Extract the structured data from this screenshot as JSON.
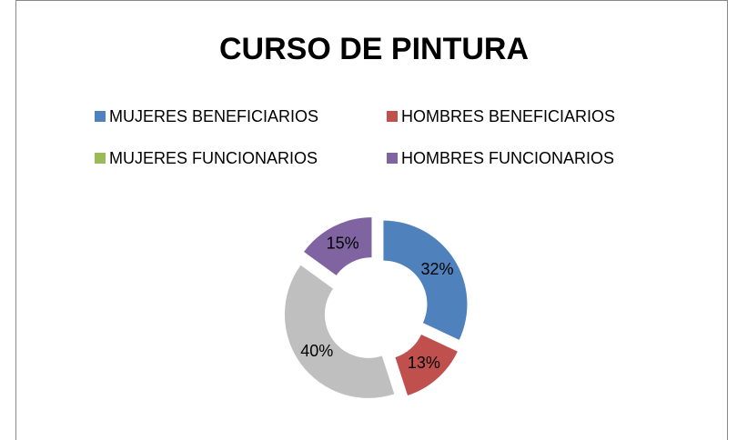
{
  "chart_data": {
    "type": "doughnut",
    "title": "CURSO DE PINTURA",
    "categories": [
      "MUJERES BENEFICIARIOS",
      "HOMBRES BENEFICIARIOS",
      null,
      "HOMBRES FUNCIONARIOS"
    ],
    "values": [
      32,
      13,
      40,
      15
    ],
    "value_labels": [
      "32%",
      "13%",
      "40%",
      "15%"
    ],
    "colors": [
      "#4f81bd",
      "#c0504d",
      "#bfbfbf",
      "#8064a2"
    ],
    "legend": [
      {
        "name": "MUJERES BENEFICIARIOS",
        "color": "#4f81bd"
      },
      {
        "name": "HOMBRES BENEFICIARIOS",
        "color": "#c0504d"
      },
      {
        "name": "MUJERES FUNCIONARIOS",
        "color": "#9bbb59"
      },
      {
        "name": "HOMBRES FUNCIONARIOS",
        "color": "#8064a2"
      }
    ]
  }
}
